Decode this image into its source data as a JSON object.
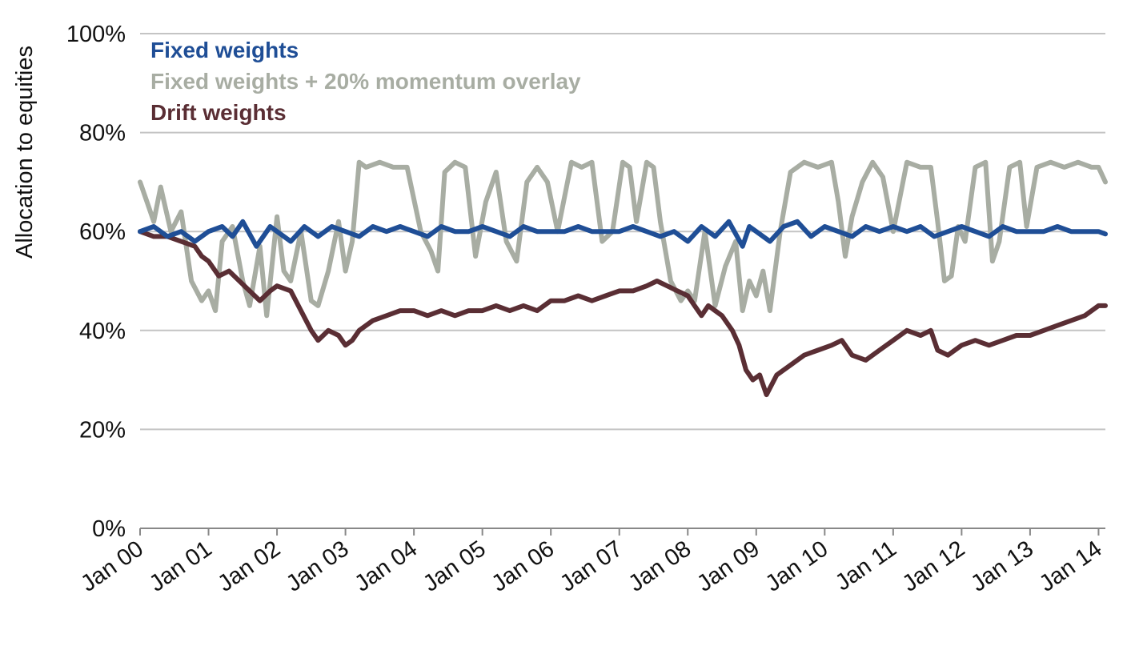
{
  "chart_data": {
    "type": "line",
    "title": "",
    "xlabel": "",
    "ylabel": "Allocation to equities",
    "ylim": [
      0,
      100
    ],
    "yticks": [
      0,
      20,
      40,
      60,
      80,
      100
    ],
    "ytick_labels": [
      "0%",
      "20%",
      "40%",
      "60%",
      "80%",
      "100%"
    ],
    "xlim": [
      2000.0,
      2014.1
    ],
    "xtick_labels": [
      "Jan 00",
      "Jan 01",
      "Jan 02",
      "Jan 03",
      "Jan 04",
      "Jan 05",
      "Jan 06",
      "Jan 07",
      "Jan 08",
      "Jan 09",
      "Jan 10",
      "Jan 11",
      "Jan 12",
      "Jan 13",
      "Jan 14"
    ],
    "grid": "horizontal",
    "legend_position": "top-left",
    "series": [
      {
        "name": "Fixed weights",
        "color": "#1f4e96",
        "x": [
          2000.0,
          2000.2,
          2000.4,
          2000.6,
          2000.8,
          2001.0,
          2001.2,
          2001.35,
          2001.5,
          2001.7,
          2001.9,
          2002.0,
          2002.2,
          2002.4,
          2002.6,
          2002.8,
          2003.0,
          2003.2,
          2003.4,
          2003.6,
          2003.8,
          2004.0,
          2004.2,
          2004.4,
          2004.6,
          2004.8,
          2005.0,
          2005.2,
          2005.4,
          2005.6,
          2005.8,
          2006.0,
          2006.2,
          2006.4,
          2006.6,
          2006.8,
          2007.0,
          2007.2,
          2007.4,
          2007.6,
          2007.8,
          2008.0,
          2008.2,
          2008.4,
          2008.6,
          2008.8,
          2008.9,
          2009.0,
          2009.2,
          2009.4,
          2009.6,
          2009.8,
          2010.0,
          2010.2,
          2010.4,
          2010.6,
          2010.8,
          2011.0,
          2011.2,
          2011.4,
          2011.6,
          2011.8,
          2012.0,
          2012.2,
          2012.4,
          2012.6,
          2012.8,
          2013.0,
          2013.2,
          2013.4,
          2013.6,
          2013.8,
          2014.0,
          2014.1
        ],
        "values": [
          60,
          61,
          59,
          60,
          58,
          60,
          61,
          59,
          62,
          57,
          61,
          60,
          58,
          61,
          59,
          61,
          60,
          59,
          61,
          60,
          61,
          60,
          59,
          61,
          60,
          60,
          61,
          60,
          59,
          61,
          60,
          60,
          60,
          61,
          60,
          60,
          60,
          61,
          60,
          59,
          60,
          58,
          61,
          59,
          62,
          57,
          61,
          60,
          58,
          61,
          62,
          59,
          61,
          60,
          59,
          61,
          60,
          61,
          60,
          61,
          59,
          60,
          61,
          60,
          59,
          61,
          60,
          60,
          60,
          61,
          60,
          60,
          60,
          59.5
        ],
        "values_note": ""
      },
      {
        "name": "Fixed weights + 20% momentum overlay",
        "color": "#a8ada3",
        "x": [
          2000.0,
          2000.1,
          2000.2,
          2000.3,
          2000.45,
          2000.6,
          2000.75,
          2000.9,
          2001.0,
          2001.1,
          2001.2,
          2001.35,
          2001.5,
          2001.6,
          2001.75,
          2001.85,
          2002.0,
          2002.1,
          2002.2,
          2002.35,
          2002.5,
          2002.6,
          2002.75,
          2002.9,
          2003.0,
          2003.1,
          2003.2,
          2003.3,
          2003.5,
          2003.7,
          2003.9,
          2004.1,
          2004.25,
          2004.35,
          2004.45,
          2004.6,
          2004.75,
          2004.9,
          2005.05,
          2005.2,
          2005.35,
          2005.5,
          2005.65,
          2005.8,
          2005.95,
          2006.1,
          2006.3,
          2006.45,
          2006.6,
          2006.75,
          2006.9,
          2007.05,
          2007.15,
          2007.25,
          2007.4,
          2007.5,
          2007.6,
          2007.75,
          2007.9,
          2008.0,
          2008.1,
          2008.25,
          2008.4,
          2008.55,
          2008.7,
          2008.8,
          2008.9,
          2009.0,
          2009.1,
          2009.2,
          2009.35,
          2009.5,
          2009.7,
          2009.9,
          2010.1,
          2010.2,
          2010.3,
          2010.4,
          2010.55,
          2010.7,
          2010.85,
          2011.0,
          2011.2,
          2011.4,
          2011.55,
          2011.65,
          2011.75,
          2011.85,
          2011.95,
          2012.05,
          2012.2,
          2012.35,
          2012.45,
          2012.55,
          2012.7,
          2012.85,
          2012.95,
          2013.1,
          2013.3,
          2013.5,
          2013.7,
          2013.9,
          2014.0,
          2014.1
        ],
        "values": [
          70,
          66,
          62,
          69,
          60,
          64,
          50,
          46,
          48,
          44,
          58,
          61,
          50,
          45,
          57,
          43,
          63,
          52,
          50,
          60,
          46,
          45,
          52,
          62,
          52,
          58,
          74,
          73,
          74,
          73,
          73,
          60,
          56,
          52,
          72,
          74,
          73,
          55,
          66,
          72,
          58,
          54,
          70,
          73,
          70,
          60,
          74,
          73,
          74,
          58,
          60,
          74,
          73,
          62,
          74,
          73,
          62,
          50,
          46,
          48,
          46,
          60,
          45,
          53,
          58,
          44,
          50,
          47,
          52,
          44,
          60,
          72,
          74,
          73,
          74,
          66,
          55,
          63,
          70,
          74,
          71,
          60,
          74,
          73,
          73,
          62,
          50,
          51,
          61,
          58,
          73,
          74,
          54,
          58,
          73,
          74,
          61,
          73,
          74,
          73,
          74,
          73,
          73,
          70
        ]
      },
      {
        "name": "Drift weights",
        "color": "#5a2e34",
        "x": [
          2000.0,
          2000.2,
          2000.4,
          2000.6,
          2000.8,
          2000.9,
          2001.0,
          2001.15,
          2001.3,
          2001.45,
          2001.6,
          2001.75,
          2001.9,
          2002.0,
          2002.2,
          2002.35,
          2002.5,
          2002.6,
          2002.75,
          2002.9,
          2003.0,
          2003.1,
          2003.2,
          2003.4,
          2003.6,
          2003.8,
          2004.0,
          2004.2,
          2004.4,
          2004.6,
          2004.8,
          2005.0,
          2005.2,
          2005.4,
          2005.6,
          2005.8,
          2006.0,
          2006.2,
          2006.4,
          2006.6,
          2006.8,
          2007.0,
          2007.2,
          2007.4,
          2007.55,
          2007.7,
          2007.85,
          2008.0,
          2008.1,
          2008.2,
          2008.3,
          2008.5,
          2008.65,
          2008.75,
          2008.85,
          2008.95,
          2009.05,
          2009.15,
          2009.3,
          2009.5,
          2009.7,
          2009.9,
          2010.1,
          2010.25,
          2010.4,
          2010.6,
          2010.8,
          2011.0,
          2011.2,
          2011.4,
          2011.55,
          2011.65,
          2011.8,
          2012.0,
          2012.2,
          2012.4,
          2012.6,
          2012.8,
          2013.0,
          2013.2,
          2013.4,
          2013.6,
          2013.8,
          2014.0,
          2014.1
        ],
        "values": [
          60,
          59,
          59,
          58,
          57,
          55,
          54,
          51,
          52,
          50,
          48,
          46,
          48,
          49,
          48,
          44,
          40,
          38,
          40,
          39,
          37,
          38,
          40,
          42,
          43,
          44,
          44,
          43,
          44,
          43,
          44,
          44,
          45,
          44,
          45,
          44,
          46,
          46,
          47,
          46,
          47,
          48,
          48,
          49,
          50,
          49,
          48,
          47,
          45,
          43,
          45,
          43,
          40,
          37,
          32,
          30,
          31,
          27,
          31,
          33,
          35,
          36,
          37,
          38,
          35,
          34,
          36,
          38,
          40,
          39,
          40,
          36,
          35,
          37,
          38,
          37,
          38,
          39,
          39,
          40,
          41,
          42,
          43,
          45,
          45
        ]
      }
    ]
  }
}
